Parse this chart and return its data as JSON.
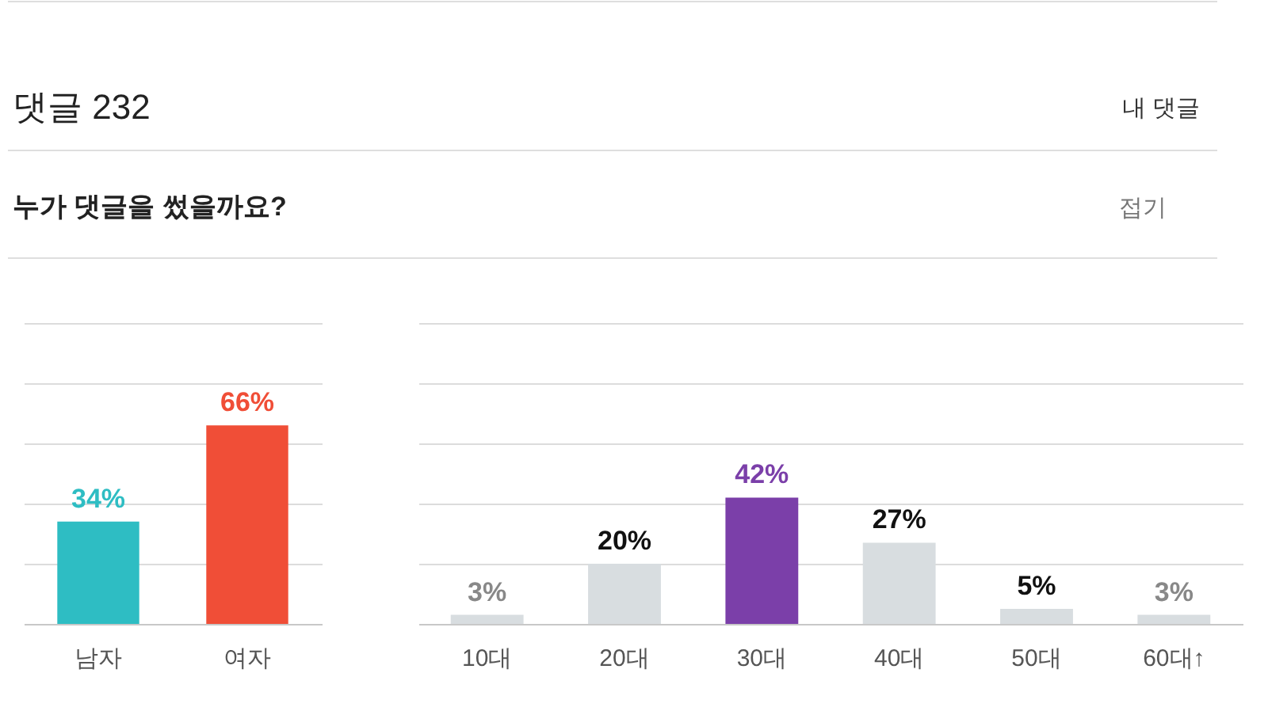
{
  "chart_data": [
    {
      "type": "other",
      "title": "누가 댓글을 썼을까요?",
      "annotations": [
        "댓글 232",
        "내 댓글",
        "접기"
      ]
    },
    {
      "type": "bar",
      "categories": [
        "남자",
        "여자"
      ],
      "values": [
        34,
        66
      ],
      "colors": [
        "#2ebdc3",
        "#f04e37"
      ],
      "value_labels": [
        "34%",
        "66%"
      ],
      "ylim": [
        0,
        100
      ],
      "yticks": [
        {
          "value": 0,
          "label": null
        },
        {
          "value": 20,
          "label": null
        },
        {
          "value": 40,
          "label": null
        },
        {
          "value": 60,
          "label": null
        },
        {
          "value": 80,
          "label": null
        },
        {
          "value": 100,
          "label": null
        }
      ],
      "grid": "y",
      "tick_labels": "x"
    },
    {
      "type": "bar",
      "categories": [
        "10대",
        "20대",
        "30대",
        "40대",
        "50대",
        "60대↑"
      ],
      "values": [
        3,
        20,
        42,
        27,
        5,
        3
      ],
      "colors": [
        "#d8dde0",
        "#d8dde0",
        "#7b3fa9",
        "#d8dde0",
        "#d8dde0",
        "#d8dde0"
      ],
      "value_labels": [
        "3%",
        "20%",
        "42%",
        "27%",
        "5%",
        "3%"
      ],
      "ylim": [
        0,
        100
      ],
      "yticks": [
        {
          "value": 0,
          "label": null
        },
        {
          "value": 20,
          "label": null
        },
        {
          "value": 40,
          "label": null
        },
        {
          "value": 60,
          "label": null
        },
        {
          "value": 80,
          "label": null
        },
        {
          "value": 100,
          "label": null
        }
      ],
      "grid": "y",
      "tick_labels": "x"
    }
  ]
}
